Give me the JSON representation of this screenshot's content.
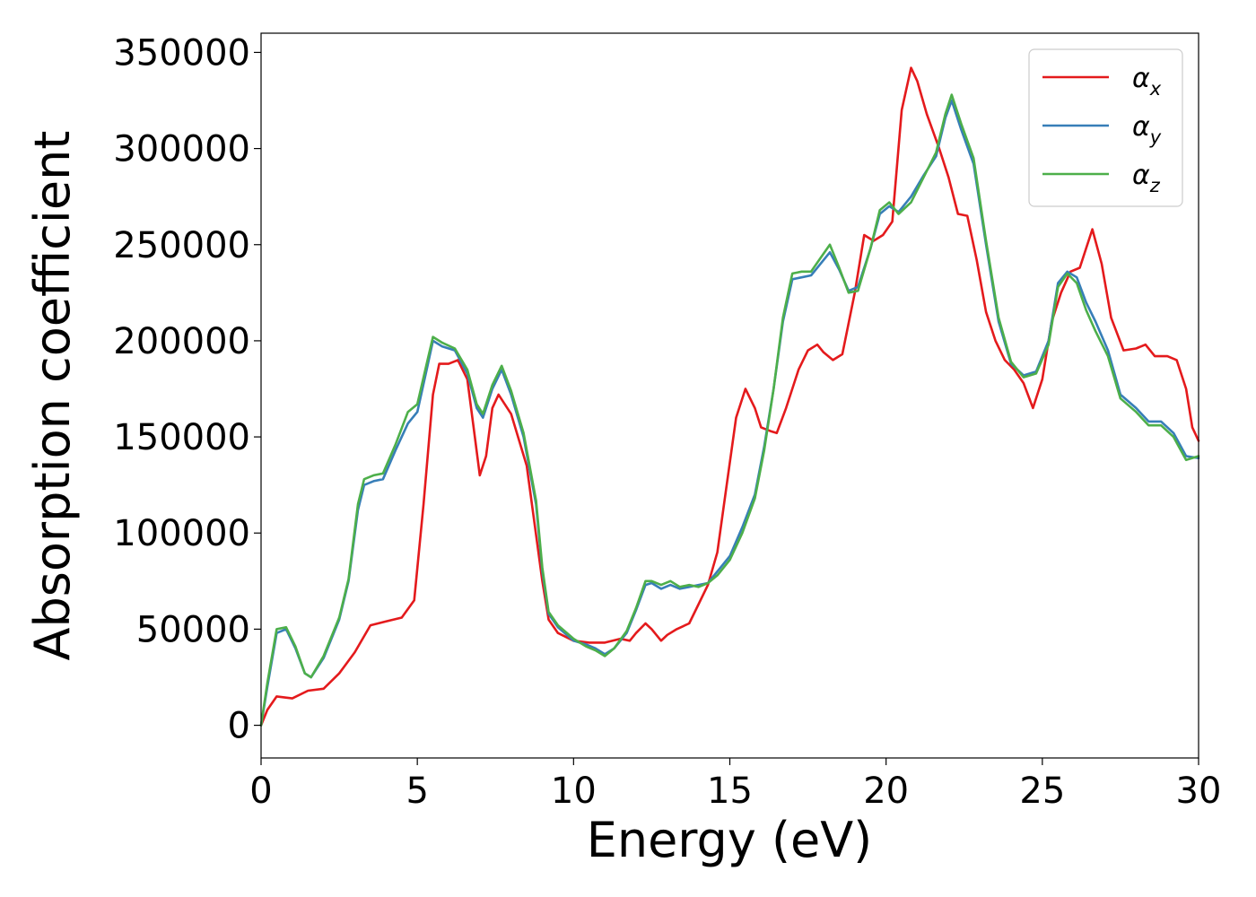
{
  "chart_data": {
    "type": "line",
    "title": "",
    "xlabel": "Energy (eV)",
    "ylabel": "Absorption coefficient",
    "xlim": [
      0,
      30
    ],
    "ylim": [
      -17000,
      360000
    ],
    "xticks": [
      0,
      5,
      10,
      15,
      20,
      25,
      30
    ],
    "xtick_labels": [
      "0",
      "5",
      "10",
      "15",
      "20",
      "25",
      "30"
    ],
    "yticks": [
      0,
      50000,
      100000,
      150000,
      200000,
      250000,
      300000,
      350000
    ],
    "ytick_labels": [
      "0",
      "50000",
      "100000",
      "150000",
      "200000",
      "250000",
      "300000",
      "350000"
    ],
    "grid": false,
    "legend_position": "top-right",
    "series": [
      {
        "name": "α",
        "subscript": "x",
        "color": "#e41a1c",
        "points": [
          [
            0.0,
            0
          ],
          [
            0.2,
            8000
          ],
          [
            0.5,
            15000
          ],
          [
            1.0,
            14000
          ],
          [
            1.5,
            18000
          ],
          [
            2.0,
            19000
          ],
          [
            2.5,
            27000
          ],
          [
            3.0,
            38000
          ],
          [
            3.5,
            52000
          ],
          [
            4.0,
            54000
          ],
          [
            4.5,
            56000
          ],
          [
            4.9,
            65000
          ],
          [
            5.2,
            115000
          ],
          [
            5.5,
            172000
          ],
          [
            5.7,
            188000
          ],
          [
            6.0,
            188000
          ],
          [
            6.3,
            190000
          ],
          [
            6.6,
            180000
          ],
          [
            6.8,
            155000
          ],
          [
            7.0,
            130000
          ],
          [
            7.2,
            140000
          ],
          [
            7.4,
            165000
          ],
          [
            7.6,
            172000
          ],
          [
            8.0,
            162000
          ],
          [
            8.5,
            135000
          ],
          [
            9.0,
            75000
          ],
          [
            9.2,
            55000
          ],
          [
            9.5,
            48000
          ],
          [
            10.0,
            44000
          ],
          [
            10.5,
            43000
          ],
          [
            11.0,
            43000
          ],
          [
            11.5,
            45000
          ],
          [
            11.8,
            44000
          ],
          [
            12.0,
            48000
          ],
          [
            12.3,
            53000
          ],
          [
            12.5,
            50000
          ],
          [
            12.8,
            44000
          ],
          [
            13.0,
            47000
          ],
          [
            13.3,
            50000
          ],
          [
            13.7,
            53000
          ],
          [
            14.0,
            63000
          ],
          [
            14.3,
            73000
          ],
          [
            14.6,
            90000
          ],
          [
            14.9,
            125000
          ],
          [
            15.2,
            160000
          ],
          [
            15.5,
            175000
          ],
          [
            15.8,
            165000
          ],
          [
            16.0,
            155000
          ],
          [
            16.3,
            153000
          ],
          [
            16.5,
            152000
          ],
          [
            16.8,
            165000
          ],
          [
            17.2,
            185000
          ],
          [
            17.5,
            195000
          ],
          [
            17.8,
            198000
          ],
          [
            18.0,
            194000
          ],
          [
            18.3,
            190000
          ],
          [
            18.6,
            193000
          ],
          [
            19.0,
            225000
          ],
          [
            19.3,
            255000
          ],
          [
            19.6,
            252000
          ],
          [
            19.9,
            255000
          ],
          [
            20.2,
            262000
          ],
          [
            20.5,
            320000
          ],
          [
            20.8,
            342000
          ],
          [
            21.0,
            335000
          ],
          [
            21.3,
            318000
          ],
          [
            21.7,
            300000
          ],
          [
            22.0,
            285000
          ],
          [
            22.3,
            266000
          ],
          [
            22.6,
            265000
          ],
          [
            22.9,
            242000
          ],
          [
            23.2,
            215000
          ],
          [
            23.5,
            200000
          ],
          [
            23.8,
            190000
          ],
          [
            24.1,
            185000
          ],
          [
            24.4,
            178000
          ],
          [
            24.7,
            165000
          ],
          [
            25.0,
            180000
          ],
          [
            25.3,
            210000
          ],
          [
            25.6,
            225000
          ],
          [
            25.9,
            236000
          ],
          [
            26.2,
            238000
          ],
          [
            26.4,
            248000
          ],
          [
            26.6,
            258000
          ],
          [
            26.9,
            240000
          ],
          [
            27.2,
            212000
          ],
          [
            27.6,
            195000
          ],
          [
            28.0,
            196000
          ],
          [
            28.3,
            198000
          ],
          [
            28.6,
            192000
          ],
          [
            29.0,
            192000
          ],
          [
            29.3,
            190000
          ],
          [
            29.6,
            175000
          ],
          [
            29.8,
            155000
          ],
          [
            30.0,
            148000
          ]
        ]
      },
      {
        "name": "α",
        "subscript": "y",
        "color": "#377eb8",
        "points": [
          [
            0.0,
            0
          ],
          [
            0.2,
            20000
          ],
          [
            0.5,
            48000
          ],
          [
            0.8,
            50000
          ],
          [
            1.1,
            40000
          ],
          [
            1.4,
            27000
          ],
          [
            1.6,
            25000
          ],
          [
            2.0,
            35000
          ],
          [
            2.5,
            55000
          ],
          [
            2.8,
            75000
          ],
          [
            3.1,
            112000
          ],
          [
            3.3,
            125000
          ],
          [
            3.6,
            127000
          ],
          [
            3.9,
            128000
          ],
          [
            4.3,
            143000
          ],
          [
            4.7,
            157000
          ],
          [
            5.0,
            163000
          ],
          [
            5.3,
            185000
          ],
          [
            5.5,
            200000
          ],
          [
            5.8,
            197000
          ],
          [
            6.2,
            195000
          ],
          [
            6.6,
            183000
          ],
          [
            6.9,
            165000
          ],
          [
            7.1,
            160000
          ],
          [
            7.4,
            175000
          ],
          [
            7.7,
            185000
          ],
          [
            8.0,
            172000
          ],
          [
            8.4,
            150000
          ],
          [
            8.8,
            115000
          ],
          [
            9.0,
            80000
          ],
          [
            9.2,
            58000
          ],
          [
            9.5,
            51000
          ],
          [
            10.0,
            44000
          ],
          [
            10.4,
            42000
          ],
          [
            10.7,
            40000
          ],
          [
            11.0,
            37000
          ],
          [
            11.3,
            40000
          ],
          [
            11.7,
            48000
          ],
          [
            12.0,
            60000
          ],
          [
            12.3,
            73000
          ],
          [
            12.5,
            74000
          ],
          [
            12.8,
            71000
          ],
          [
            13.1,
            73000
          ],
          [
            13.4,
            71000
          ],
          [
            13.7,
            72000
          ],
          [
            14.0,
            73000
          ],
          [
            14.3,
            74000
          ],
          [
            14.6,
            80000
          ],
          [
            15.0,
            88000
          ],
          [
            15.4,
            103000
          ],
          [
            15.8,
            120000
          ],
          [
            16.1,
            145000
          ],
          [
            16.4,
            175000
          ],
          [
            16.7,
            210000
          ],
          [
            17.0,
            232000
          ],
          [
            17.3,
            233000
          ],
          [
            17.6,
            234000
          ],
          [
            17.9,
            240000
          ],
          [
            18.2,
            246000
          ],
          [
            18.5,
            237000
          ],
          [
            18.8,
            226000
          ],
          [
            19.1,
            228000
          ],
          [
            19.5,
            248000
          ],
          [
            19.8,
            266000
          ],
          [
            20.1,
            270000
          ],
          [
            20.4,
            267000
          ],
          [
            20.8,
            275000
          ],
          [
            21.2,
            286000
          ],
          [
            21.6,
            296000
          ],
          [
            21.9,
            316000
          ],
          [
            22.1,
            325000
          ],
          [
            22.4,
            310000
          ],
          [
            22.8,
            292000
          ],
          [
            23.2,
            250000
          ],
          [
            23.6,
            210000
          ],
          [
            24.0,
            188000
          ],
          [
            24.4,
            182000
          ],
          [
            24.8,
            184000
          ],
          [
            25.2,
            200000
          ],
          [
            25.5,
            230000
          ],
          [
            25.8,
            236000
          ],
          [
            26.1,
            233000
          ],
          [
            26.4,
            220000
          ],
          [
            26.7,
            210000
          ],
          [
            27.1,
            195000
          ],
          [
            27.5,
            172000
          ],
          [
            28.0,
            165000
          ],
          [
            28.4,
            158000
          ],
          [
            28.8,
            158000
          ],
          [
            29.2,
            152000
          ],
          [
            29.6,
            140000
          ],
          [
            30.0,
            139000
          ]
        ]
      },
      {
        "name": "α",
        "subscript": "z",
        "color": "#4daf4a",
        "points": [
          [
            0.0,
            0
          ],
          [
            0.2,
            22000
          ],
          [
            0.5,
            50000
          ],
          [
            0.8,
            51000
          ],
          [
            1.1,
            41000
          ],
          [
            1.4,
            27000
          ],
          [
            1.6,
            25000
          ],
          [
            2.0,
            36000
          ],
          [
            2.5,
            56000
          ],
          [
            2.8,
            76000
          ],
          [
            3.1,
            115000
          ],
          [
            3.3,
            128000
          ],
          [
            3.6,
            130000
          ],
          [
            3.9,
            131000
          ],
          [
            4.3,
            146000
          ],
          [
            4.7,
            163000
          ],
          [
            5.0,
            167000
          ],
          [
            5.3,
            188000
          ],
          [
            5.5,
            202000
          ],
          [
            5.8,
            199000
          ],
          [
            6.2,
            196000
          ],
          [
            6.6,
            185000
          ],
          [
            6.9,
            167000
          ],
          [
            7.1,
            162000
          ],
          [
            7.4,
            177000
          ],
          [
            7.7,
            187000
          ],
          [
            8.0,
            174000
          ],
          [
            8.4,
            152000
          ],
          [
            8.8,
            117000
          ],
          [
            9.0,
            82000
          ],
          [
            9.2,
            59000
          ],
          [
            9.5,
            52000
          ],
          [
            10.0,
            45000
          ],
          [
            10.4,
            41000
          ],
          [
            10.7,
            39000
          ],
          [
            11.0,
            36000
          ],
          [
            11.3,
            40000
          ],
          [
            11.7,
            49000
          ],
          [
            12.0,
            61000
          ],
          [
            12.3,
            75000
          ],
          [
            12.5,
            75000
          ],
          [
            12.8,
            73000
          ],
          [
            13.1,
            75000
          ],
          [
            13.4,
            72000
          ],
          [
            13.7,
            73000
          ],
          [
            14.0,
            72000
          ],
          [
            14.3,
            74000
          ],
          [
            14.6,
            78000
          ],
          [
            15.0,
            86000
          ],
          [
            15.4,
            100000
          ],
          [
            15.8,
            118000
          ],
          [
            16.1,
            143000
          ],
          [
            16.4,
            175000
          ],
          [
            16.7,
            212000
          ],
          [
            17.0,
            235000
          ],
          [
            17.3,
            236000
          ],
          [
            17.6,
            236000
          ],
          [
            17.9,
            243000
          ],
          [
            18.2,
            250000
          ],
          [
            18.5,
            238000
          ],
          [
            18.8,
            225000
          ],
          [
            19.1,
            226000
          ],
          [
            19.5,
            248000
          ],
          [
            19.8,
            268000
          ],
          [
            20.1,
            272000
          ],
          [
            20.4,
            266000
          ],
          [
            20.8,
            272000
          ],
          [
            21.2,
            285000
          ],
          [
            21.6,
            298000
          ],
          [
            21.9,
            318000
          ],
          [
            22.1,
            328000
          ],
          [
            22.4,
            313000
          ],
          [
            22.8,
            295000
          ],
          [
            23.2,
            252000
          ],
          [
            23.6,
            212000
          ],
          [
            24.0,
            189000
          ],
          [
            24.4,
            181000
          ],
          [
            24.8,
            183000
          ],
          [
            25.2,
            198000
          ],
          [
            25.5,
            228000
          ],
          [
            25.8,
            235000
          ],
          [
            26.1,
            230000
          ],
          [
            26.4,
            216000
          ],
          [
            26.7,
            205000
          ],
          [
            27.1,
            192000
          ],
          [
            27.5,
            170000
          ],
          [
            28.0,
            163000
          ],
          [
            28.4,
            156000
          ],
          [
            28.8,
            156000
          ],
          [
            29.2,
            150000
          ],
          [
            29.6,
            138000
          ],
          [
            30.0,
            140000
          ]
        ]
      }
    ]
  }
}
